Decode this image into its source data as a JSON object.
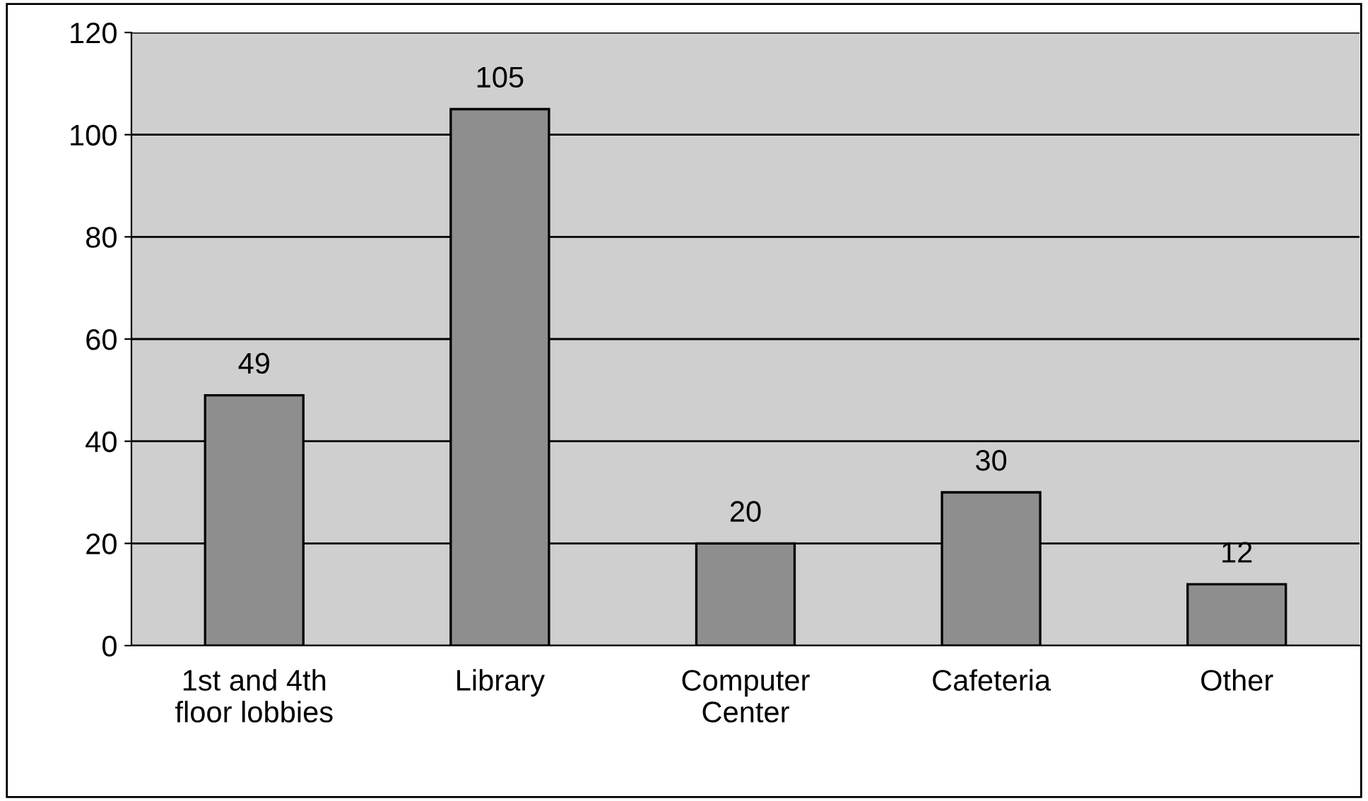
{
  "chart_data": {
    "type": "bar",
    "categories": [
      "1st and 4th\nfloor lobbies",
      "Library",
      "Computer\nCenter",
      "Cafeteria",
      "Other"
    ],
    "values": [
      49,
      105,
      20,
      30,
      12
    ],
    "color": "#8e8e8e",
    "ylim": [
      0,
      120
    ],
    "yticks": [
      0,
      20,
      40,
      60,
      80,
      100,
      120
    ],
    "grid": "y",
    "data_labels": true
  }
}
